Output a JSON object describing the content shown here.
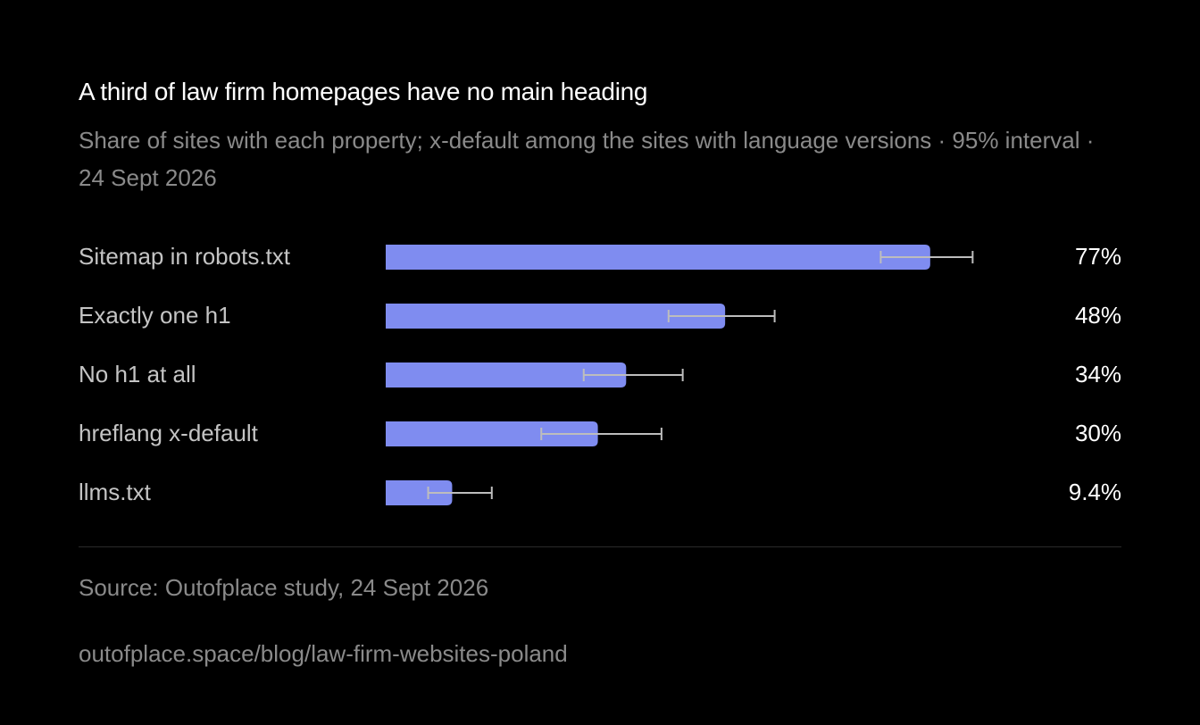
{
  "chart_data": {
    "type": "bar",
    "orientation": "horizontal",
    "title": "A third of law firm homepages have no main heading",
    "subtitle": "Share of sites with each property; x-default among the sites with language versions · 95% interval · 24 Sept 2026",
    "categories": [
      "Sitemap in robots.txt",
      "Exactly one h1",
      "No h1 at all",
      "hreflang x-default",
      "llms.txt"
    ],
    "values": [
      77,
      48,
      34,
      30,
      9.4
    ],
    "value_labels": [
      "77%",
      "48%",
      "34%",
      "30%",
      "9.4%"
    ],
    "intervals": [
      [
        70,
        83
      ],
      [
        40,
        55
      ],
      [
        28,
        42
      ],
      [
        22,
        39
      ],
      [
        6,
        15
      ]
    ],
    "xlim": [
      0,
      100
    ],
    "unit": "%",
    "grid": false,
    "bar_color": "#7f8cf0",
    "error_bar_color": "#bdbdbd"
  },
  "footer": {
    "source": "Source: Outofplace study, 24 Sept 2026",
    "url": "outofplace.space/blog/law-firm-websites-poland"
  }
}
